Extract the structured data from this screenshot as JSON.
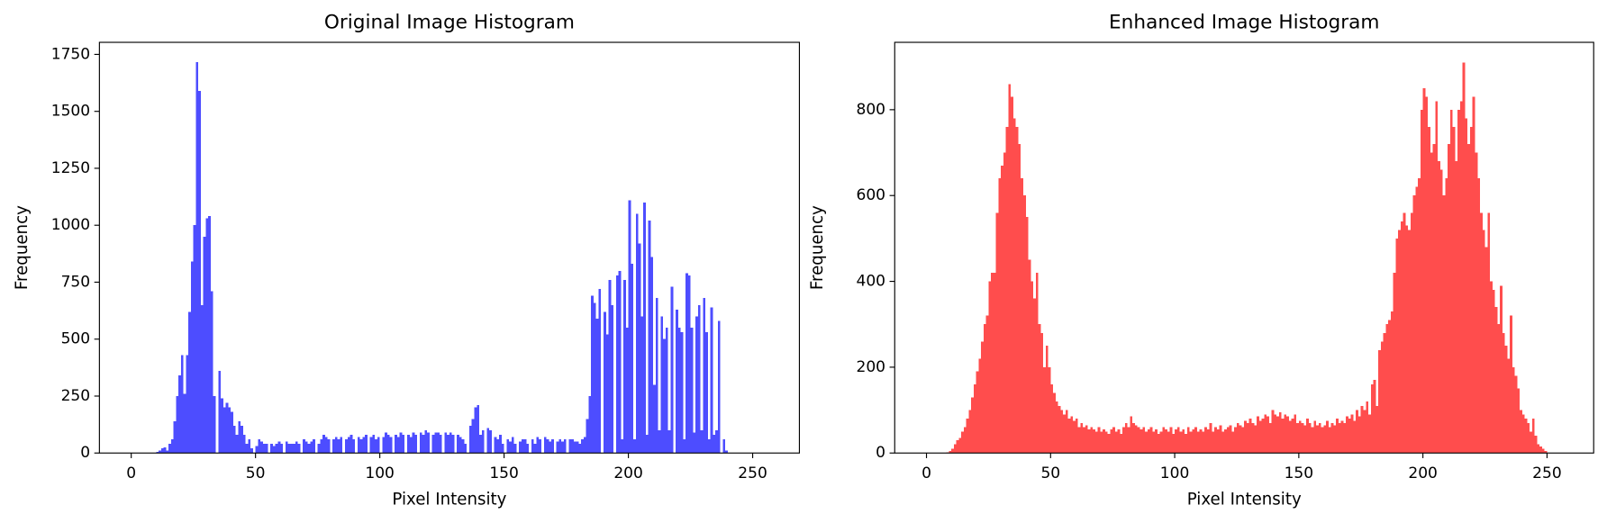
{
  "chart_data": [
    {
      "type": "histogram",
      "title": "Original Image Histogram",
      "x_label": "Pixel Intensity",
      "y_label": "Frequency",
      "color": "#4d4dff",
      "bins": [
        0,
        1,
        2,
        3,
        4,
        5,
        6,
        7,
        8,
        9,
        10,
        11,
        12,
        13,
        14,
        15,
        16,
        17,
        18,
        19,
        20,
        21,
        22,
        23,
        24,
        25,
        26,
        27,
        28,
        29,
        30,
        31,
        32,
        33,
        34,
        35,
        36,
        37,
        38,
        39,
        40,
        41,
        42,
        43,
        44,
        45,
        46,
        47,
        48,
        49,
        50,
        51,
        52,
        53,
        54,
        55,
        56,
        57,
        58,
        59,
        60,
        61,
        62,
        63,
        64,
        65,
        66,
        67,
        68,
        69,
        70,
        71,
        72,
        73,
        74,
        75,
        76,
        77,
        78,
        79,
        80,
        81,
        82,
        83,
        84,
        85,
        86,
        87,
        88,
        89,
        90,
        91,
        92,
        93,
        94,
        95,
        96,
        97,
        98,
        99,
        100,
        101,
        102,
        103,
        104,
        105,
        106,
        107,
        108,
        109,
        110,
        111,
        112,
        113,
        114,
        115,
        116,
        117,
        118,
        119,
        120,
        121,
        122,
        123,
        124,
        125,
        126,
        127,
        128,
        129,
        130,
        131,
        132,
        133,
        134,
        135,
        136,
        137,
        138,
        139,
        140,
        141,
        142,
        143,
        144,
        145,
        146,
        147,
        148,
        149,
        150,
        151,
        152,
        153,
        154,
        155,
        156,
        157,
        158,
        159,
        160,
        161,
        162,
        163,
        164,
        165,
        166,
        167,
        168,
        169,
        170,
        171,
        172,
        173,
        174,
        175,
        176,
        177,
        178,
        179,
        180,
        181,
        182,
        183,
        184,
        185,
        186,
        187,
        188,
        189,
        190,
        191,
        192,
        193,
        194,
        195,
        196,
        197,
        198,
        199,
        200,
        201,
        202,
        203,
        204,
        205,
        206,
        207,
        208,
        209,
        210,
        211,
        212,
        213,
        214,
        215,
        216,
        217,
        218,
        219,
        220,
        221,
        222,
        223,
        224,
        225,
        226,
        227,
        228,
        229,
        230,
        231,
        232,
        233,
        234,
        235,
        236,
        237,
        238,
        239,
        240,
        241,
        242,
        243,
        244,
        245,
        246,
        247,
        248,
        249,
        250,
        251,
        252,
        253,
        254,
        255,
        256
      ],
      "values": [
        0,
        0,
        0,
        0,
        0,
        0,
        0,
        0,
        0,
        0,
        5,
        10,
        20,
        25,
        10,
        40,
        60,
        140,
        250,
        340,
        430,
        260,
        430,
        620,
        840,
        1000,
        1717,
        1590,
        650,
        950,
        1030,
        1040,
        710,
        250,
        0,
        360,
        240,
        200,
        220,
        200,
        180,
        120,
        80,
        140,
        120,
        80,
        40,
        60,
        20,
        0,
        30,
        60,
        50,
        40,
        40,
        0,
        40,
        30,
        40,
        50,
        40,
        0,
        50,
        40,
        40,
        40,
        50,
        40,
        0,
        60,
        50,
        40,
        50,
        60,
        0,
        40,
        60,
        80,
        70,
        60,
        0,
        60,
        70,
        60,
        70,
        0,
        60,
        70,
        80,
        60,
        0,
        70,
        60,
        70,
        80,
        0,
        70,
        80,
        60,
        70,
        0,
        70,
        90,
        80,
        70,
        0,
        80,
        70,
        90,
        80,
        0,
        80,
        70,
        90,
        80,
        0,
        90,
        80,
        100,
        90,
        0,
        80,
        90,
        90,
        80,
        0,
        90,
        80,
        90,
        80,
        0,
        80,
        70,
        60,
        40,
        0,
        120,
        150,
        200,
        210,
        80,
        100,
        0,
        110,
        100,
        0,
        70,
        60,
        80,
        40,
        0,
        60,
        50,
        70,
        40,
        0,
        50,
        60,
        60,
        40,
        0,
        60,
        40,
        70,
        60,
        0,
        70,
        60,
        50,
        60,
        0,
        50,
        60,
        50,
        60,
        0,
        60,
        60,
        50,
        50,
        40,
        60,
        70,
        150,
        250,
        690,
        660,
        590,
        720,
        0,
        620,
        520,
        760,
        650,
        0,
        780,
        800,
        60,
        760,
        550,
        1110,
        830,
        60,
        1050,
        920,
        600,
        1100,
        80,
        1020,
        860,
        300,
        680,
        100,
        600,
        500,
        550,
        100,
        730,
        0,
        630,
        550,
        530,
        60,
        790,
        780,
        550,
        90,
        600,
        650,
        100,
        680,
        530,
        60,
        640,
        80,
        100,
        580,
        0,
        60,
        10,
        0,
        0,
        0,
        0,
        0,
        0,
        0,
        0,
        0,
        0,
        0,
        0,
        0,
        0,
        0,
        0
      ],
      "xlim": [
        -12.8,
        268.8
      ],
      "xticks": [
        0,
        50,
        100,
        150,
        200,
        250
      ],
      "ylim": [
        0,
        1803
      ],
      "yticks": [
        0,
        250,
        500,
        750,
        1000,
        1250,
        1500,
        1750
      ],
      "grid": false
    },
    {
      "type": "histogram",
      "title": "Enhanced Image Histogram",
      "x_label": "Pixel Intensity",
      "y_label": "Frequency",
      "color": "#ff4d4d",
      "bins": [
        0,
        1,
        2,
        3,
        4,
        5,
        6,
        7,
        8,
        9,
        10,
        11,
        12,
        13,
        14,
        15,
        16,
        17,
        18,
        19,
        20,
        21,
        22,
        23,
        24,
        25,
        26,
        27,
        28,
        29,
        30,
        31,
        32,
        33,
        34,
        35,
        36,
        37,
        38,
        39,
        40,
        41,
        42,
        43,
        44,
        45,
        46,
        47,
        48,
        49,
        50,
        51,
        52,
        53,
        54,
        55,
        56,
        57,
        58,
        59,
        60,
        61,
        62,
        63,
        64,
        65,
        66,
        67,
        68,
        69,
        70,
        71,
        72,
        73,
        74,
        75,
        76,
        77,
        78,
        79,
        80,
        81,
        82,
        83,
        84,
        85,
        86,
        87,
        88,
        89,
        90,
        91,
        92,
        93,
        94,
        95,
        96,
        97,
        98,
        99,
        100,
        101,
        102,
        103,
        104,
        105,
        106,
        107,
        108,
        109,
        110,
        111,
        112,
        113,
        114,
        115,
        116,
        117,
        118,
        119,
        120,
        121,
        122,
        123,
        124,
        125,
        126,
        127,
        128,
        129,
        130,
        131,
        132,
        133,
        134,
        135,
        136,
        137,
        138,
        139,
        140,
        141,
        142,
        143,
        144,
        145,
        146,
        147,
        148,
        149,
        150,
        151,
        152,
        153,
        154,
        155,
        156,
        157,
        158,
        159,
        160,
        161,
        162,
        163,
        164,
        165,
        166,
        167,
        168,
        169,
        170,
        171,
        172,
        173,
        174,
        175,
        176,
        177,
        178,
        179,
        180,
        181,
        182,
        183,
        184,
        185,
        186,
        187,
        188,
        189,
        190,
        191,
        192,
        193,
        194,
        195,
        196,
        197,
        198,
        199,
        200,
        201,
        202,
        203,
        204,
        205,
        206,
        207,
        208,
        209,
        210,
        211,
        212,
        213,
        214,
        215,
        216,
        217,
        218,
        219,
        220,
        221,
        222,
        223,
        224,
        225,
        226,
        227,
        228,
        229,
        230,
        231,
        232,
        233,
        234,
        235,
        236,
        237,
        238,
        239,
        240,
        241,
        242,
        243,
        244,
        245,
        246,
        247,
        248,
        249,
        250,
        251,
        252,
        253,
        254,
        255,
        256
      ],
      "values": [
        0,
        0,
        0,
        0,
        0,
        0,
        0,
        0,
        2,
        5,
        10,
        20,
        30,
        35,
        50,
        60,
        80,
        100,
        130,
        160,
        190,
        220,
        260,
        300,
        320,
        400,
        420,
        420,
        560,
        640,
        670,
        700,
        760,
        860,
        830,
        780,
        760,
        720,
        640,
        600,
        550,
        450,
        400,
        360,
        420,
        300,
        280,
        200,
        250,
        200,
        160,
        140,
        120,
        110,
        100,
        90,
        100,
        80,
        85,
        75,
        80,
        60,
        70,
        60,
        65,
        55,
        60,
        55,
        50,
        60,
        50,
        55,
        50,
        45,
        55,
        60,
        50,
        55,
        45,
        60,
        70,
        60,
        85,
        70,
        65,
        60,
        55,
        60,
        50,
        55,
        60,
        50,
        55,
        45,
        50,
        60,
        55,
        50,
        60,
        45,
        55,
        60,
        50,
        55,
        45,
        60,
        50,
        55,
        60,
        50,
        55,
        50,
        60,
        55,
        70,
        50,
        60,
        55,
        65,
        50,
        55,
        60,
        65,
        50,
        60,
        70,
        65,
        60,
        75,
        70,
        80,
        70,
        65,
        85,
        75,
        80,
        90,
        85,
        70,
        100,
        90,
        85,
        95,
        80,
        90,
        85,
        75,
        80,
        90,
        70,
        75,
        70,
        65,
        80,
        70,
        60,
        75,
        65,
        70,
        60,
        65,
        75,
        60,
        70,
        65,
        80,
        70,
        75,
        70,
        85,
        80,
        90,
        75,
        100,
        85,
        110,
        100,
        120,
        90,
        160,
        170,
        110,
        240,
        260,
        280,
        300,
        310,
        330,
        420,
        500,
        520,
        540,
        560,
        530,
        520,
        560,
        600,
        620,
        640,
        800,
        850,
        830,
        760,
        700,
        720,
        820,
        680,
        660,
        600,
        640,
        720,
        800,
        760,
        680,
        800,
        820,
        910,
        780,
        720,
        760,
        830,
        700,
        640,
        560,
        520,
        480,
        560,
        400,
        380,
        340,
        300,
        390,
        280,
        250,
        220,
        320,
        200,
        180,
        150,
        100,
        90,
        80,
        70,
        50,
        80,
        40,
        20,
        15,
        10,
        5,
        0,
        0,
        0,
        0,
        0,
        0
      ],
      "xlim": [
        -12.8,
        268.8
      ],
      "xticks": [
        0,
        50,
        100,
        150,
        200,
        250
      ],
      "ylim": [
        0,
        957
      ],
      "yticks": [
        0,
        200,
        400,
        600,
        800
      ],
      "grid": false
    }
  ]
}
